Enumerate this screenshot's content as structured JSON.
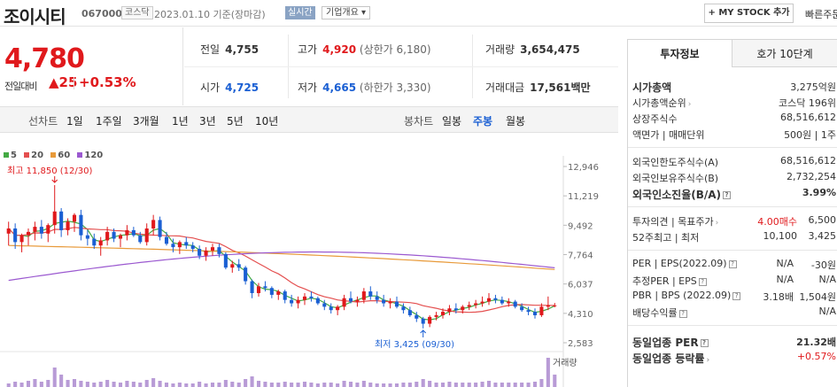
{
  "stock": {
    "name": "조이시티",
    "code": "067000",
    "market": "코스닥",
    "date_note": "2023.01.10  기준(장마감)",
    "realtime": "실시간",
    "overview": "기업개요 ▾",
    "mystock_button": "+ MY STOCK 추가",
    "quick_search": "빠른주문"
  },
  "quote": {
    "price": "4,780",
    "diff_label": "전일대비",
    "diff_value": "▲25",
    "rate": "+0.53%",
    "prev_label": "전일",
    "prev": "4,755",
    "high_label": "고가",
    "high": "4,920",
    "upper_limit": "(상한가 6,180)",
    "volume_label": "거래량",
    "volume": "3,654,475",
    "open_label": "시가",
    "open": "4,725",
    "low_label": "저가",
    "low": "4,665",
    "lower_limit": "(하한가 3,330)",
    "amount_label": "거래대금",
    "amount": "17,561",
    "amount_unit": "백만"
  },
  "chart_tabs": {
    "line_chart": "선차트",
    "periods": [
      "1일",
      "1주일",
      "3개월",
      "1년",
      "3년",
      "5년",
      "10년"
    ],
    "candle_chart": "봉차트",
    "candle_periods": [
      "일봉",
      "주봉",
      "월봉"
    ],
    "active": "주봉"
  },
  "chart_data": {
    "type": "candlestick",
    "moving_averages": [
      {
        "name": "5",
        "color": "#44aa44"
      },
      {
        "name": "20",
        "color": "#e44f4f"
      },
      {
        "name": "60",
        "color": "#e89a3a"
      },
      {
        "name": "120",
        "color": "#9b59d0"
      }
    ],
    "y_ticks": [
      "12,946",
      "11,219",
      "9,492",
      "7,764",
      "6,037",
      "4,310",
      "2,583"
    ],
    "ylim": [
      2583,
      12946
    ],
    "high_annotation": "최고 11,850 (12/30)",
    "low_annotation": "최저 3,425 (09/30)",
    "volume_label": "거래량",
    "candles": [
      [
        9000,
        9700,
        8300,
        9300
      ],
      [
        9300,
        9600,
        8100,
        8500
      ],
      [
        8500,
        9000,
        7900,
        8900
      ],
      [
        8900,
        9300,
        8300,
        9100
      ],
      [
        9100,
        9700,
        8600,
        9400
      ],
      [
        9400,
        9800,
        8700,
        9000
      ],
      [
        9000,
        9600,
        8500,
        9500
      ],
      [
        9500,
        11850,
        9000,
        10300
      ],
      [
        10300,
        10500,
        8800,
        9200
      ],
      [
        9200,
        9900,
        8900,
        9700
      ],
      [
        9700,
        10200,
        9100,
        10100
      ],
      [
        10100,
        10400,
        8600,
        8900
      ],
      [
        8900,
        9200,
        8300,
        8700
      ],
      [
        8700,
        9000,
        8100,
        8300
      ],
      [
        8300,
        8800,
        7700,
        8600
      ],
      [
        8600,
        9400,
        8300,
        9100
      ],
      [
        9100,
        9300,
        8500,
        8700
      ],
      [
        8700,
        9000,
        8200,
        8900
      ],
      [
        8900,
        9500,
        8600,
        9200
      ],
      [
        9200,
        9400,
        8800,
        8900
      ],
      [
        8900,
        9100,
        8400,
        8500
      ],
      [
        8500,
        9600,
        8300,
        9300
      ],
      [
        9300,
        10100,
        8900,
        9800
      ],
      [
        9800,
        10000,
        8600,
        8800
      ],
      [
        8800,
        9100,
        8300,
        8400
      ],
      [
        8400,
        8700,
        7900,
        8200
      ],
      [
        8200,
        8600,
        7800,
        8500
      ],
      [
        8500,
        8800,
        8100,
        8300
      ],
      [
        8300,
        8500,
        7900,
        8100
      ],
      [
        8100,
        8300,
        7500,
        7700
      ],
      [
        7700,
        8200,
        7400,
        8000
      ],
      [
        8000,
        8400,
        7700,
        8200
      ],
      [
        8200,
        8400,
        7600,
        7800
      ],
      [
        7800,
        7900,
        6900,
        7000
      ],
      [
        7000,
        7400,
        6700,
        7200
      ],
      [
        7200,
        7500,
        6800,
        7000
      ],
      [
        7000,
        7100,
        6000,
        6200
      ],
      [
        6200,
        6300,
        5200,
        5500
      ],
      [
        5500,
        6100,
        5300,
        5900
      ],
      [
        5900,
        6200,
        5600,
        5800
      ],
      [
        5800,
        5900,
        5200,
        5400
      ],
      [
        5400,
        5700,
        5100,
        5600
      ],
      [
        5600,
        5700,
        4900,
        5100
      ],
      [
        5100,
        5400,
        4700,
        4900
      ],
      [
        4900,
        5300,
        4600,
        5100
      ],
      [
        5100,
        5500,
        4800,
        5300
      ],
      [
        5300,
        5600,
        5000,
        5200
      ],
      [
        5200,
        5300,
        4800,
        4900
      ],
      [
        4900,
        5100,
        4500,
        4700
      ],
      [
        4700,
        4900,
        4300,
        4500
      ],
      [
        4500,
        4800,
        4200,
        4700
      ],
      [
        4700,
        5400,
        4500,
        5200
      ],
      [
        5200,
        5600,
        4900,
        5000
      ],
      [
        5000,
        5300,
        4700,
        5100
      ],
      [
        5100,
        5800,
        4900,
        5600
      ],
      [
        5600,
        5900,
        5100,
        5300
      ],
      [
        5300,
        5600,
        4900,
        5100
      ],
      [
        5100,
        5400,
        4700,
        4900
      ],
      [
        4900,
        5200,
        4600,
        5000
      ],
      [
        5000,
        5300,
        4600,
        4700
      ],
      [
        4700,
        4900,
        4300,
        4500
      ],
      [
        4500,
        4700,
        4100,
        4200
      ],
      [
        4200,
        4400,
        3800,
        4000
      ],
      [
        4000,
        4100,
        3425,
        3700
      ],
      [
        3700,
        4200,
        3500,
        4100
      ],
      [
        4100,
        4400,
        3900,
        4200
      ],
      [
        4200,
        4600,
        4000,
        4400
      ],
      [
        4400,
        4800,
        4200,
        4600
      ],
      [
        4600,
        4900,
        4300,
        4500
      ],
      [
        4500,
        4800,
        4300,
        4700
      ],
      [
        4700,
        5000,
        4500,
        4800
      ],
      [
        4800,
        5100,
        4600,
        4900
      ],
      [
        4900,
        5300,
        4700,
        5000
      ],
      [
        5000,
        5500,
        4800,
        5200
      ],
      [
        5200,
        5400,
        4900,
        5100
      ],
      [
        5100,
        5300,
        4800,
        4900
      ],
      [
        4900,
        5200,
        4700,
        5000
      ],
      [
        5000,
        5100,
        4600,
        4700
      ],
      [
        4700,
        4900,
        4400,
        4500
      ],
      [
        4500,
        4700,
        4200,
        4400
      ],
      [
        4400,
        4600,
        4000,
        4200
      ],
      [
        4200,
        4900,
        4100,
        4700
      ],
      [
        4700,
        5300,
        4500,
        4780
      ],
      [
        4780,
        4920,
        4665,
        4780
      ]
    ]
  },
  "right_panel": {
    "tab_invest": "투자정보",
    "tab_orderbook": "호가 10단계",
    "rows": {
      "mktcap_k": "시가총액",
      "mktcap_v": "3,275억원",
      "mktcap_rank_k": "시가총액순위",
      "mktcap_rank_v": "코스닥  196위",
      "shares_k": "상장주식수",
      "shares_v": "68,516,612",
      "face_k": "액면가 | 매매단위",
      "face_v": "500원  |  1주",
      "foreign_limit_k": "외국인한도주식수(A)",
      "foreign_limit_v": "68,516,612",
      "foreign_hold_k": "외국인보유주식수(B)",
      "foreign_hold_v": "2,732,254",
      "foreign_rate_k": "외국인소진율(B/A)",
      "foreign_rate_v": "3.99%",
      "opinion_k": "투자의견  |  목표주가",
      "opinion_v1": "4.00매수",
      "opinion_v2": "6,500",
      "w52_k": "52주최고  |  최저",
      "w52_v1": "10,100",
      "w52_v2": "3,425",
      "per_k": "PER  |  EPS(2022.09)",
      "per_v1": "N/A",
      "per_v2": "-30원",
      "est_per_k": "추정PER  |  EPS",
      "est_per_v1": "N/A",
      "est_per_v2": "N/A",
      "pbr_k": "PBR  |  BPS (2022.09)",
      "pbr_v1": "3.18배",
      "pbr_v2": "1,504원",
      "div_k": "배당수익률",
      "div_v": "N/A",
      "ind_per_k": "동일업종 PER",
      "ind_per_v": "21.32배",
      "ind_rate_k": "동일업종 등락률",
      "ind_rate_v": "+0.57%"
    }
  }
}
